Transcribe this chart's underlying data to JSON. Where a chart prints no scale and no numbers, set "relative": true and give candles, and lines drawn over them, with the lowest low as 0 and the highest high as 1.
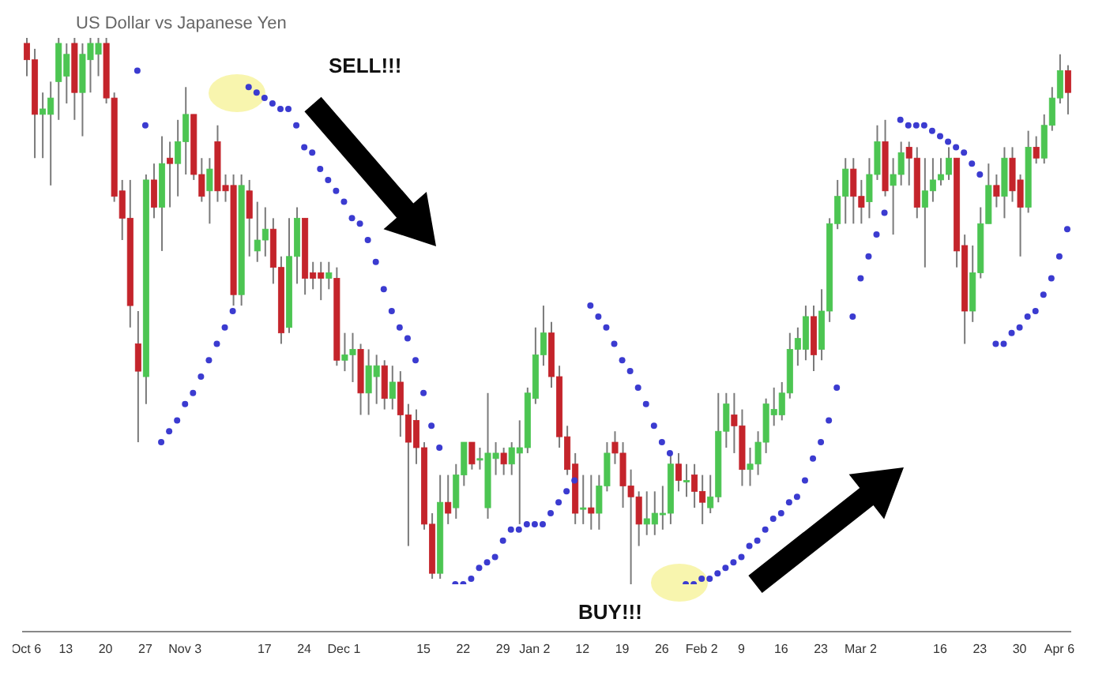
{
  "chart_data": {
    "type": "candlestick",
    "title": "US Dollar vs Japanese Yen",
    "relative": true,
    "annotations": [
      "SELL!!!",
      "BUY!!!"
    ],
    "categories": [
      "Oct 6",
      null,
      null,
      null,
      null,
      "13",
      null,
      null,
      null,
      null,
      "20",
      null,
      null,
      null,
      null,
      "27",
      null,
      null,
      null,
      null,
      "Nov 3",
      null,
      null,
      null,
      null,
      null,
      null,
      null,
      null,
      null,
      "17",
      null,
      null,
      null,
      null,
      "24",
      null,
      null,
      null,
      null,
      "Dec 1",
      null,
      null,
      null,
      null,
      null,
      null,
      null,
      null,
      null,
      "15",
      null,
      null,
      null,
      null,
      "22",
      null,
      null,
      null,
      null,
      "29",
      null,
      null,
      null,
      "Jan 2",
      null,
      null,
      null,
      null,
      null,
      "12",
      null,
      null,
      null,
      null,
      "19",
      null,
      null,
      null,
      null,
      "26",
      null,
      null,
      null,
      null,
      "Feb 2",
      null,
      null,
      null,
      null,
      "9",
      null,
      null,
      null,
      null,
      "16",
      null,
      null,
      null,
      null,
      "23",
      null,
      null,
      null,
      null,
      "Mar 2",
      null,
      null,
      null,
      null,
      null,
      null,
      null,
      null,
      null,
      "16",
      null,
      null,
      null,
      null,
      "23",
      null,
      null,
      null,
      null,
      "30",
      null,
      null,
      null,
      null,
      "Apr 6",
      null
    ],
    "ohlc": [
      [
        0.99,
        1.0,
        0.93,
        0.96
      ],
      [
        0.96,
        0.98,
        0.78,
        0.86
      ],
      [
        0.86,
        0.9,
        0.78,
        0.87
      ],
      [
        0.86,
        0.92,
        0.73,
        0.89
      ],
      [
        0.92,
        1.0,
        0.85,
        0.99
      ],
      [
        0.93,
        0.99,
        0.88,
        0.97
      ],
      [
        0.99,
        1.0,
        0.85,
        0.9
      ],
      [
        0.9,
        0.99,
        0.82,
        0.97
      ],
      [
        0.96,
        1.0,
        0.9,
        0.99
      ],
      [
        0.97,
        1.0,
        0.93,
        0.99
      ],
      [
        0.99,
        1.0,
        0.88,
        0.89
      ],
      [
        0.89,
        0.9,
        0.7,
        0.71
      ],
      [
        0.72,
        0.74,
        0.63,
        0.67
      ],
      [
        0.67,
        0.74,
        0.47,
        0.51
      ],
      [
        0.44,
        0.5,
        0.26,
        0.39
      ],
      [
        0.38,
        0.75,
        0.33,
        0.74
      ],
      [
        0.74,
        0.77,
        0.67,
        0.69
      ],
      [
        0.69,
        0.82,
        0.61,
        0.77
      ],
      [
        0.78,
        0.81,
        0.69,
        0.77
      ],
      [
        0.77,
        0.85,
        0.71,
        0.81
      ],
      [
        0.81,
        0.91,
        0.75,
        0.86
      ],
      [
        0.86,
        0.86,
        0.74,
        0.75
      ],
      [
        0.75,
        0.78,
        0.7,
        0.71
      ],
      [
        0.72,
        0.78,
        0.66,
        0.76
      ],
      [
        0.81,
        0.84,
        0.7,
        0.72
      ],
      [
        0.73,
        0.75,
        0.7,
        0.72
      ],
      [
        0.73,
        0.75,
        0.51,
        0.53
      ],
      [
        0.53,
        0.75,
        0.51,
        0.73
      ],
      [
        0.72,
        0.74,
        0.6,
        0.67
      ],
      [
        0.61,
        0.7,
        0.59,
        0.63
      ],
      [
        0.63,
        0.69,
        0.6,
        0.65
      ],
      [
        0.65,
        0.67,
        0.55,
        0.58
      ],
      [
        0.58,
        0.6,
        0.44,
        0.46
      ],
      [
        0.47,
        0.67,
        0.46,
        0.6
      ],
      [
        0.6,
        0.69,
        0.55,
        0.67
      ],
      [
        0.67,
        0.67,
        0.53,
        0.56
      ],
      [
        0.57,
        0.59,
        0.54,
        0.56
      ],
      [
        0.57,
        0.59,
        0.52,
        0.56
      ],
      [
        0.56,
        0.59,
        0.54,
        0.57
      ],
      [
        0.56,
        0.58,
        0.4,
        0.41
      ],
      [
        0.41,
        0.46,
        0.39,
        0.42
      ],
      [
        0.42,
        0.46,
        0.37,
        0.43
      ],
      [
        0.43,
        0.44,
        0.31,
        0.35
      ],
      [
        0.35,
        0.43,
        0.31,
        0.4
      ],
      [
        0.38,
        0.42,
        0.33,
        0.4
      ],
      [
        0.4,
        0.41,
        0.32,
        0.34
      ],
      [
        0.34,
        0.4,
        0.32,
        0.37
      ],
      [
        0.37,
        0.39,
        0.27,
        0.31
      ],
      [
        0.31,
        0.33,
        0.07,
        0.26
      ],
      [
        0.3,
        0.32,
        0.22,
        0.25
      ],
      [
        0.25,
        0.26,
        0.1,
        0.11
      ],
      [
        0.11,
        0.13,
        0.01,
        0.02
      ],
      [
        0.02,
        0.2,
        0.01,
        0.15
      ],
      [
        0.15,
        0.2,
        0.11,
        0.13
      ],
      [
        0.14,
        0.22,
        0.12,
        0.2
      ],
      [
        0.2,
        0.26,
        0.18,
        0.26
      ],
      [
        0.26,
        0.26,
        0.21,
        0.22
      ],
      [
        0.23,
        0.25,
        0.21,
        0.23
      ],
      [
        0.14,
        0.35,
        0.12,
        0.24
      ],
      [
        0.23,
        0.26,
        0.2,
        0.24
      ],
      [
        0.24,
        0.25,
        0.2,
        0.22
      ],
      [
        0.22,
        0.26,
        0.2,
        0.25
      ],
      [
        0.24,
        0.3,
        0.11,
        0.25
      ],
      [
        0.25,
        0.36,
        0.24,
        0.35
      ],
      [
        0.34,
        0.47,
        0.33,
        0.42
      ],
      [
        0.42,
        0.51,
        0.4,
        0.46
      ],
      [
        0.46,
        0.48,
        0.36,
        0.38
      ],
      [
        0.38,
        0.4,
        0.25,
        0.27
      ],
      [
        0.27,
        0.29,
        0.2,
        0.21
      ],
      [
        0.22,
        0.24,
        0.11,
        0.13
      ],
      [
        0.14,
        0.2,
        0.11,
        0.14
      ],
      [
        0.14,
        0.2,
        0.1,
        0.13
      ],
      [
        0.13,
        0.2,
        0.1,
        0.18
      ],
      [
        0.18,
        0.26,
        0.17,
        0.24
      ],
      [
        0.26,
        0.28,
        0.22,
        0.24
      ],
      [
        0.24,
        0.26,
        0.14,
        0.18
      ],
      [
        0.18,
        0.21,
        0,
        0.16
      ],
      [
        0.16,
        0.17,
        0.07,
        0.11
      ],
      [
        0.11,
        0.17,
        0.09,
        0.12
      ],
      [
        0.11,
        0.17,
        0.09,
        0.13
      ],
      [
        0.13,
        0.18,
        0.1,
        0.13
      ],
      [
        0.13,
        0.24,
        0.11,
        0.22
      ],
      [
        0.22,
        0.24,
        0.17,
        0.19
      ],
      [
        0.19,
        0.22,
        0.16,
        0.19
      ],
      [
        0.2,
        0.22,
        0.14,
        0.17
      ],
      [
        0.17,
        0.2,
        0.11,
        0.15
      ],
      [
        0.14,
        0.2,
        0.13,
        0.16
      ],
      [
        0.16,
        0.35,
        0.15,
        0.28
      ],
      [
        0.28,
        0.35,
        0.25,
        0.33
      ],
      [
        0.31,
        0.35,
        0.24,
        0.29
      ],
      [
        0.29,
        0.32,
        0.18,
        0.21
      ],
      [
        0.21,
        0.25,
        0.18,
        0.22
      ],
      [
        0.22,
        0.28,
        0.2,
        0.26
      ],
      [
        0.26,
        0.34,
        0.24,
        0.33
      ],
      [
        0.31,
        0.36,
        0.29,
        0.32
      ],
      [
        0.31,
        0.37,
        0.3,
        0.35
      ],
      [
        0.35,
        0.46,
        0.34,
        0.43
      ],
      [
        0.43,
        0.47,
        0.4,
        0.45
      ],
      [
        0.43,
        0.51,
        0.41,
        0.49
      ],
      [
        0.49,
        0.51,
        0.39,
        0.42
      ],
      [
        0.43,
        0.54,
        0.41,
        0.5
      ],
      [
        0.5,
        0.67,
        0.48,
        0.66
      ],
      [
        0.66,
        0.74,
        0.65,
        0.71
      ],
      [
        0.71,
        0.78,
        0.66,
        0.76
      ],
      [
        0.76,
        0.78,
        0.66,
        0.71
      ],
      [
        0.71,
        0.74,
        0.66,
        0.69
      ],
      [
        0.7,
        0.78,
        0.67,
        0.75
      ],
      [
        0.75,
        0.84,
        0.74,
        0.81
      ],
      [
        0.81,
        0.85,
        0.71,
        0.72
      ],
      [
        0.73,
        0.78,
        0.64,
        0.75
      ],
      [
        0.75,
        0.81,
        0.73,
        0.79
      ],
      [
        0.8,
        0.81,
        0.73,
        0.78
      ],
      [
        0.78,
        0.8,
        0.67,
        0.69
      ],
      [
        0.69,
        0.78,
        0.58,
        0.72
      ],
      [
        0.72,
        0.78,
        0.7,
        0.74
      ],
      [
        0.74,
        0.78,
        0.73,
        0.75
      ],
      [
        0.75,
        0.8,
        0.74,
        0.78
      ],
      [
        0.78,
        0.78,
        0.58,
        0.61
      ],
      [
        0.62,
        0.64,
        0.44,
        0.5
      ],
      [
        0.5,
        0.62,
        0.48,
        0.57
      ],
      [
        0.57,
        0.69,
        0.56,
        0.66
      ],
      [
        0.66,
        0.77,
        0.66,
        0.73
      ],
      [
        0.73,
        0.75,
        0.69,
        0.71
      ],
      [
        0.71,
        0.8,
        0.67,
        0.78
      ],
      [
        0.78,
        0.8,
        0.7,
        0.72
      ],
      [
        0.74,
        0.75,
        0.6,
        0.69
      ],
      [
        0.69,
        0.83,
        0.68,
        0.8
      ],
      [
        0.8,
        0.82,
        0.77,
        0.78
      ],
      [
        0.78,
        0.86,
        0.77,
        0.84
      ],
      [
        0.84,
        0.91,
        0.83,
        0.89
      ],
      [
        0.89,
        0.97,
        0.88,
        0.94
      ],
      [
        0.94,
        0.95,
        0.86,
        0.9
      ]
    ],
    "series": [
      {
        "type": "scatter",
        "color": "#3b3bd0",
        "values": [
          null,
          null,
          null,
          null,
          null,
          null,
          null,
          null,
          null,
          null,
          null,
          null,
          null,
          null,
          0.94,
          0.84,
          null,
          0.26,
          0.28,
          0.3,
          0.33,
          0.35,
          0.38,
          0.41,
          0.44,
          0.47,
          0.5,
          null,
          0.91,
          0.9,
          0.89,
          0.88,
          0.87,
          0.87,
          0.84,
          0.8,
          0.79,
          0.76,
          0.74,
          0.72,
          0.7,
          0.67,
          0.66,
          0.63,
          0.59,
          0.54,
          0.5,
          0.47,
          0.45,
          0.41,
          0.35,
          0.29,
          0.25,
          null,
          0,
          0,
          0.01,
          0.03,
          0.04,
          0.05,
          0.08,
          0.1,
          0.1,
          0.11,
          0.11,
          0.11,
          0.13,
          0.15,
          0.17,
          0.19,
          null,
          0.51,
          0.49,
          0.47,
          0.44,
          0.41,
          0.39,
          0.36,
          0.33,
          0.29,
          0.26,
          0.24,
          null,
          0,
          0,
          0.01,
          0.01,
          0.02,
          0.03,
          0.04,
          0.05,
          0.07,
          0.08,
          0.1,
          0.12,
          0.13,
          0.15,
          0.16,
          0.19,
          0.23,
          0.26,
          0.3,
          0.36,
          null,
          0.49,
          0.56,
          0.6,
          0.64,
          0.68,
          null,
          0.85,
          0.84,
          0.84,
          0.84,
          0.83,
          0.82,
          0.81,
          0.8,
          0.79,
          0.77,
          0.75,
          null,
          0.44,
          0.44,
          0.46,
          0.47,
          0.49,
          0.5,
          0.53,
          0.56,
          0.6,
          0.65
        ]
      }
    ]
  }
}
